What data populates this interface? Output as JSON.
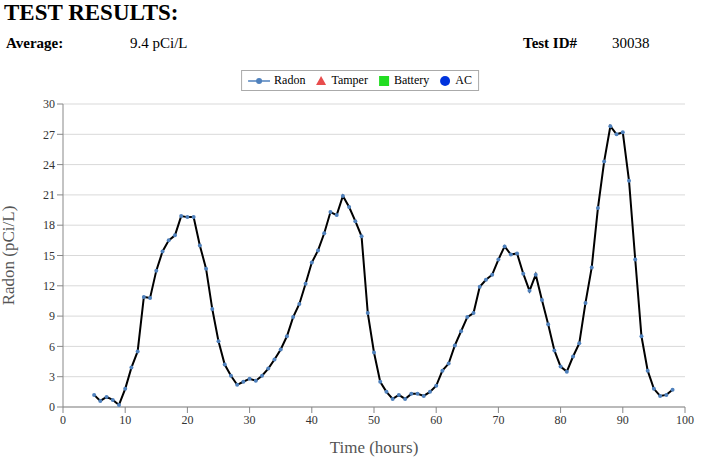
{
  "header": {
    "title": "TEST RESULTS:",
    "average_label": "Average:",
    "average": "9.4 pCi/L",
    "test_id_label": "Test ID#",
    "test_id": "30038"
  },
  "chart_data": {
    "type": "line",
    "x_label": "Time (hours)",
    "y_label": "Radon (pCi/L)",
    "xlim": [
      0,
      100
    ],
    "xticks": [
      0,
      10,
      20,
      30,
      40,
      50,
      60,
      70,
      80,
      90,
      100
    ],
    "ylim": [
      0,
      30
    ],
    "yticks": [
      0,
      3,
      6,
      9,
      12,
      15,
      18,
      21,
      24,
      27,
      30
    ],
    "grid": true,
    "legend": "top",
    "x": [
      5,
      6,
      7,
      8,
      9,
      10,
      11,
      12,
      13,
      14,
      15,
      16,
      17,
      18,
      19,
      20,
      21,
      22,
      23,
      24,
      25,
      26,
      27,
      28,
      29,
      30,
      31,
      32,
      33,
      34,
      35,
      36,
      37,
      38,
      39,
      40,
      41,
      42,
      43,
      44,
      45,
      46,
      47,
      48,
      49,
      50,
      51,
      52,
      53,
      54,
      55,
      56,
      57,
      58,
      59,
      60,
      61,
      62,
      63,
      64,
      65,
      66,
      67,
      68,
      69,
      70,
      71,
      72,
      73,
      74,
      75,
      76,
      77,
      78,
      79,
      80,
      81,
      82,
      83,
      84,
      85,
      86,
      87,
      88,
      89,
      90,
      91,
      92,
      93,
      94,
      95,
      96,
      97,
      98
    ],
    "series": [
      {
        "name": "Radon",
        "color": "#4f81bd",
        "marker": "circle",
        "line_style": "solid",
        "values": [
          1.2,
          0.6,
          1.0,
          0.7,
          0.2,
          1.8,
          3.9,
          5.5,
          10.9,
          10.8,
          13.5,
          15.4,
          16.5,
          17.0,
          18.9,
          18.8,
          18.8,
          16.0,
          13.7,
          9.7,
          6.5,
          4.2,
          3.1,
          2.2,
          2.5,
          2.8,
          2.6,
          3.1,
          3.8,
          4.7,
          5.7,
          7.0,
          8.9,
          10.2,
          12.2,
          14.3,
          15.5,
          17.2,
          19.3,
          19.0,
          20.9,
          19.8,
          18.4,
          16.9,
          9.3,
          5.4,
          2.5,
          1.5,
          0.8,
          1.2,
          0.8,
          1.3,
          1.3,
          1.1,
          1.5,
          2.1,
          3.6,
          4.3,
          6.1,
          7.5,
          8.9,
          9.3,
          11.9,
          12.6,
          13.1,
          14.6,
          15.9,
          15.1,
          15.2,
          13.2,
          11.5,
          13.1,
          10.6,
          8.2,
          5.6,
          4.0,
          3.5,
          5.0,
          6.3,
          10.3,
          13.8,
          19.7,
          24.3,
          27.8,
          27.0,
          27.2,
          22.4,
          14.6,
          7.0,
          3.6,
          1.8,
          1.1,
          1.2,
          1.7
        ]
      },
      {
        "name": "Tamper",
        "color": "#e84c4c",
        "marker": "triangle",
        "values": [
          null,
          null,
          null,
          null,
          null,
          null,
          null,
          null,
          null,
          null,
          null,
          null,
          null,
          null,
          null,
          null,
          null,
          null,
          null,
          null,
          null,
          null,
          null,
          null,
          null,
          null,
          null,
          null,
          null,
          null,
          null,
          null,
          null,
          null,
          null,
          null,
          null,
          null,
          null,
          null,
          null,
          null,
          null,
          null,
          null,
          null,
          null,
          null,
          null,
          null,
          null,
          null,
          null,
          null,
          null,
          null,
          null,
          null,
          null,
          null,
          null,
          null,
          null,
          null,
          null,
          null,
          null,
          null,
          null,
          null,
          null,
          null,
          null,
          null,
          null,
          null,
          null,
          null,
          null,
          null,
          null,
          null,
          null,
          null,
          null,
          null,
          null,
          null,
          null,
          null,
          null,
          null,
          null,
          null
        ]
      },
      {
        "name": "Battery",
        "color": "#22dd22",
        "marker": "square",
        "values": [
          null,
          null,
          null,
          null,
          null,
          null,
          null,
          null,
          null,
          null,
          null,
          null,
          null,
          null,
          null,
          null,
          null,
          null,
          null,
          null,
          null,
          null,
          null,
          null,
          null,
          null,
          null,
          null,
          null,
          null,
          null,
          null,
          null,
          null,
          null,
          null,
          null,
          null,
          null,
          null,
          null,
          null,
          null,
          null,
          null,
          null,
          null,
          null,
          null,
          null,
          null,
          null,
          null,
          null,
          null,
          null,
          null,
          null,
          null,
          null,
          null,
          null,
          null,
          null,
          null,
          null,
          null,
          null,
          null,
          null,
          null,
          null,
          null,
          null,
          null,
          null,
          null,
          null,
          null,
          null,
          null,
          null,
          null,
          null,
          null,
          null,
          null,
          null,
          null,
          null,
          null,
          null,
          null,
          null
        ]
      },
      {
        "name": "AC",
        "color": "#0033dd",
        "marker": "circle",
        "values": [
          null,
          null,
          null,
          null,
          null,
          null,
          null,
          null,
          null,
          null,
          null,
          null,
          null,
          null,
          null,
          null,
          null,
          null,
          null,
          null,
          null,
          null,
          null,
          null,
          null,
          null,
          null,
          null,
          null,
          null,
          null,
          null,
          null,
          null,
          null,
          null,
          null,
          null,
          null,
          null,
          null,
          null,
          null,
          null,
          null,
          null,
          null,
          null,
          null,
          null,
          null,
          null,
          null,
          null,
          null,
          null,
          null,
          null,
          null,
          null,
          null,
          null,
          null,
          null,
          null,
          null,
          null,
          null,
          null,
          null,
          null,
          null,
          null,
          null,
          null,
          null,
          null,
          null,
          null,
          null,
          null,
          null,
          null,
          null,
          null,
          null,
          null,
          null,
          null,
          null,
          null,
          null,
          null,
          null
        ]
      }
    ]
  }
}
